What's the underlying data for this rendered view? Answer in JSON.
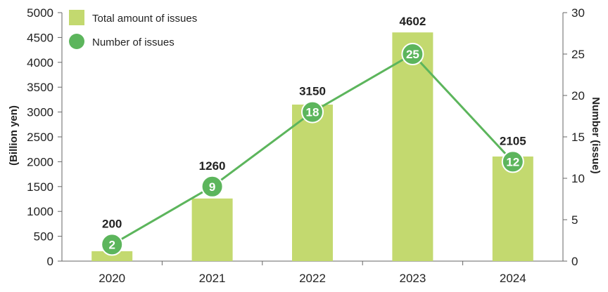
{
  "chart_data": {
    "type": "bar",
    "categories": [
      "2020",
      "2021",
      "2022",
      "2023",
      "2024"
    ],
    "series": [
      {
        "name": "Total amount of issues",
        "type": "bar",
        "axis": "left",
        "color": "#c3d96f",
        "values": [
          200,
          1260,
          3150,
          4602,
          2105
        ]
      },
      {
        "name": "Number of issues",
        "type": "line",
        "axis": "right",
        "color": "#5cb55c",
        "values": [
          2,
          9,
          18,
          25,
          12
        ]
      }
    ],
    "ylabel": "(Billion yen)",
    "y2label": "Number (issue)",
    "xlabel": "",
    "ylim": [
      0,
      5000
    ],
    "y2lim": [
      0,
      30
    ],
    "yticks": [
      0,
      500,
      1000,
      1500,
      2000,
      2500,
      3000,
      3500,
      4000,
      4500,
      5000
    ],
    "y2ticks": [
      0,
      5,
      10,
      15,
      20,
      25,
      30
    ],
    "grid": false,
    "legend_position": "top-left"
  }
}
